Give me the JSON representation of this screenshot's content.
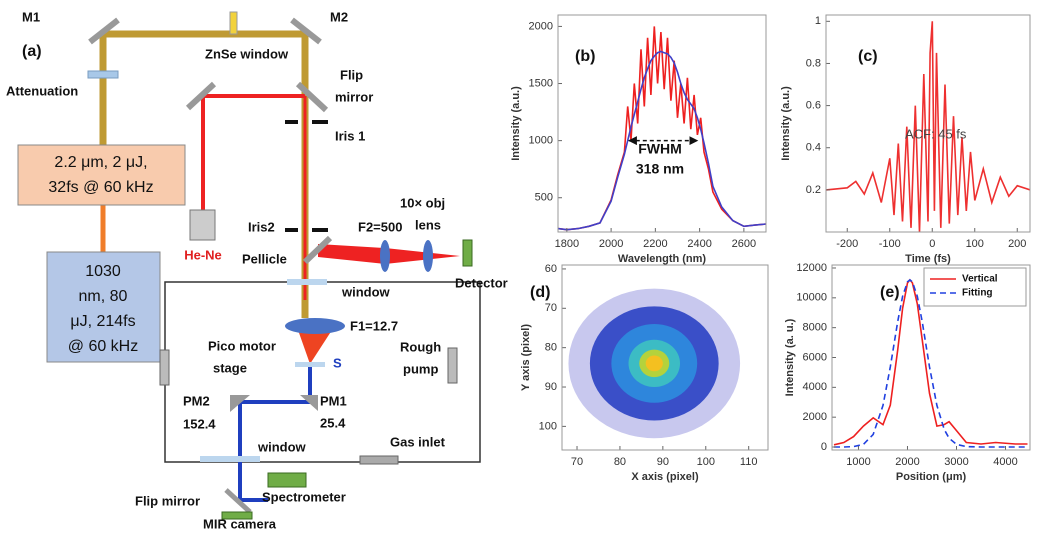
{
  "diagram": {
    "panel": "(a)",
    "m1": "M1",
    "m2": "M2",
    "znse": "ZnSe window",
    "attenuation": "Attenuation",
    "flip_mirror_top": [
      "Flip",
      "mirror"
    ],
    "iris1": "Iris 1",
    "iris2": "Iris2",
    "laser1": [
      "2.2 μm, 2 μJ,",
      "32fs @ 60 kHz"
    ],
    "laser2": [
      "1030",
      "nm, 80",
      "μJ, 214fs",
      "@ 60 kHz"
    ],
    "hene": "He-Ne",
    "pellicle": "Pellicle",
    "f2": "F2=500",
    "obj_lens": [
      "10× obj",
      "lens"
    ],
    "detector": "Detector",
    "window_top": "window",
    "f1": "F1=12.7",
    "stage": [
      "Pico motor",
      "stage"
    ],
    "sample": "S",
    "rough_pump": [
      "Rough",
      "pump"
    ],
    "pm2": [
      "PM2",
      "152.4"
    ],
    "pm1": [
      "PM1",
      "25.4"
    ],
    "window_bottom": "window",
    "gas_inlet": "Gas inlet",
    "flip_mirror_bottom": "Flip mirror",
    "spectrometer": "Spectrometer",
    "mir_camera": "MIR camera"
  },
  "charts": [
    {
      "type": "line",
      "panel": "(b)",
      "x_label": "Wavelength (nm)",
      "y_label": "Intensity (a.u.)",
      "xlim": [
        1760,
        2700
      ],
      "ylim": [
        200,
        2100
      ],
      "xticks": [
        1800,
        2000,
        2200,
        2400,
        2600
      ],
      "yticks": [
        500,
        1000,
        1500,
        2000
      ],
      "x": [
        1760,
        1800,
        1850,
        1900,
        1950,
        2000,
        2030,
        2060,
        2075,
        2090,
        2105,
        2120,
        2135,
        2150,
        2165,
        2180,
        2195,
        2210,
        2225,
        2240,
        2255,
        2270,
        2285,
        2300,
        2315,
        2330,
        2345,
        2360,
        2375,
        2390,
        2405,
        2420,
        2440,
        2460,
        2500,
        2550,
        2600,
        2650,
        2700
      ],
      "series": [
        {
          "color": "#ee2020",
          "values": [
            230,
            220,
            230,
            250,
            280,
            480,
            700,
            900,
            1300,
            1000,
            1500,
            1150,
            1800,
            1300,
            1900,
            1400,
            2000,
            1500,
            1950,
            1450,
            1900,
            1350,
            1700,
            1200,
            1500,
            1150,
            1550,
            1100,
            1400,
            1050,
            1200,
            900,
            750,
            550,
            400,
            300,
            250,
            260,
            270
          ]
        },
        {
          "color": "#4040c8",
          "values": [
            230,
            220,
            230,
            250,
            280,
            470,
            680,
            880,
            1000,
            1120,
            1230,
            1340,
            1450,
            1550,
            1630,
            1700,
            1740,
            1770,
            1780,
            1770,
            1760,
            1730,
            1680,
            1600,
            1500,
            1420,
            1360,
            1320,
            1280,
            1200,
            1100,
            980,
            800,
            600,
            420,
            300,
            250,
            260,
            270
          ]
        }
      ],
      "fwhm_arrow": {
        "x": [
          2080,
          2390
        ],
        "y": 1000
      },
      "annotation": [
        "FWHM",
        "318 nm"
      ]
    },
    {
      "type": "line",
      "panel": "(c)",
      "x_label": "Time (fs)",
      "y_label": "Intensity (a.u.)",
      "xlim": [
        -250,
        230
      ],
      "ylim": [
        0,
        1.03
      ],
      "xticks": [
        -200,
        -100,
        0,
        100,
        200
      ],
      "yticks": [
        0.2,
        0.4,
        0.6,
        0.8,
        1
      ],
      "x": [
        -250,
        -200,
        -180,
        -160,
        -140,
        -120,
        -100,
        -90,
        -80,
        -70,
        -60,
        -50,
        -40,
        -30,
        -20,
        -10,
        -5,
        0,
        5,
        10,
        20,
        30,
        40,
        50,
        60,
        70,
        80,
        90,
        100,
        120,
        140,
        160,
        180,
        200,
        230
      ],
      "series": [
        {
          "color": "#ee3030",
          "values": [
            0.2,
            0.21,
            0.24,
            0.18,
            0.28,
            0.14,
            0.35,
            0.08,
            0.42,
            0.05,
            0.5,
            0.02,
            0.6,
            0.0,
            0.75,
            0.05,
            0.85,
            1.0,
            0.1,
            0.85,
            0.02,
            0.7,
            0.04,
            0.55,
            0.08,
            0.45,
            0.1,
            0.38,
            0.15,
            0.3,
            0.14,
            0.26,
            0.17,
            0.22,
            0.2
          ]
        }
      ],
      "annotation": [
        "ACF: 45 fs"
      ]
    },
    {
      "type": "image",
      "panel": "(d)",
      "x_label": "X axis (pixel)",
      "y_label": "Y axis (pixel)",
      "xlim": [
        66.5,
        114.5
      ],
      "ylim": [
        106,
        59
      ],
      "xticks": [
        70,
        80,
        90,
        100,
        110
      ],
      "yticks": [
        60,
        70,
        80,
        90,
        100
      ],
      "center": [
        88,
        84
      ],
      "rings": [
        {
          "rx": 20,
          "ry": 19,
          "color": "#c8c8ee"
        },
        {
          "rx": 15,
          "ry": 14.5,
          "color": "#3a4fc8"
        },
        {
          "rx": 10,
          "ry": 10,
          "color": "#2e86dc"
        },
        {
          "rx": 6,
          "ry": 6,
          "color": "#3cbcc4"
        },
        {
          "rx": 3.5,
          "ry": 3.5,
          "color": "#b4d23c"
        },
        {
          "rx": 2,
          "ry": 2,
          "color": "#f4c020"
        }
      ]
    },
    {
      "type": "line",
      "panel": "(e)",
      "x_label": "Position (μm)",
      "y_label": "Intensity (a. u.)",
      "xlim": [
        460,
        4500
      ],
      "ylim": [
        -200,
        12200
      ],
      "xticks": [
        1000,
        2000,
        3000,
        4000
      ],
      "yticks": [
        0,
        2000,
        4000,
        6000,
        8000,
        10000,
        12000
      ],
      "legend": "upper right",
      "x": [
        500,
        700,
        900,
        1100,
        1300,
        1500,
        1650,
        1800,
        1900,
        2000,
        2050,
        2100,
        2200,
        2300,
        2450,
        2600,
        2750,
        2850,
        3000,
        3200,
        3500,
        3800,
        4200,
        4450
      ],
      "series": [
        {
          "name": "Vertical",
          "color": "#ee2020",
          "style": "solid",
          "values": [
            150,
            300,
            700,
            1400,
            1950,
            1500,
            2800,
            6500,
            9300,
            11000,
            11200,
            11000,
            9600,
            7200,
            3600,
            1400,
            1500,
            1700,
            1100,
            300,
            200,
            300,
            200,
            200
          ]
        },
        {
          "name": "Fitting",
          "color": "#2040e0",
          "style": "dashed",
          "values": [
            0,
            0,
            26,
            178,
            848,
            2792,
            5370,
            8405,
            10100,
            11070,
            11200,
            11070,
            10100,
            8405,
            5370,
            2792,
            1180,
            593,
            178,
            26,
            0,
            0,
            0,
            0
          ]
        }
      ]
    }
  ]
}
